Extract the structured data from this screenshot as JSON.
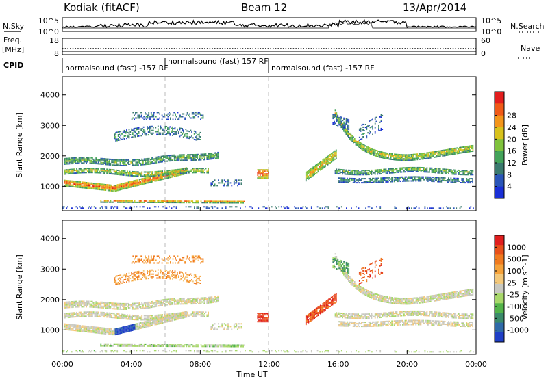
{
  "header": {
    "station": "Kodiak (fitACF)",
    "beam": "Beam 12",
    "date": "13/Apr/2014"
  },
  "panels": {
    "nsky_label": "N.Sky",
    "nsky_ticks": [
      "10^5",
      "10^0"
    ],
    "nsearch_label": "N.Search",
    "freq_label_1": "Freq.",
    "freq_label_2": "[MHz]",
    "freq_ticks": [
      "18",
      "8"
    ],
    "nave_label": "Nave",
    "nave_ticks": [
      "60",
      "0"
    ],
    "cpid_label": "CPID",
    "cpid_segments": [
      {
        "text": "normalsound (fast) -157 RF"
      },
      {
        "text": "normalsound (fast) 157 RF"
      },
      {
        "text": "normalsound (fast) -157 RF"
      }
    ]
  },
  "chart_data": [
    {
      "type": "heatmap",
      "name": "power",
      "ylabel": "Slant Range [km]",
      "yticks": [
        1000,
        2000,
        3000,
        4000
      ],
      "ylim": [
        200,
        4600
      ],
      "xlim": [
        0,
        24
      ],
      "colorbar": {
        "label": "Power [dB]",
        "ticks": [
          "4",
          "8",
          "12",
          "16",
          "20",
          "24",
          "28"
        ],
        "colors": [
          "#1a2fd6",
          "#2a55b8",
          "#3a7a6e",
          "#43a35a",
          "#7fc23c",
          "#d8c21c",
          "#f3951a",
          "#f05a17",
          "#e31e1e"
        ]
      }
    },
    {
      "type": "heatmap",
      "name": "velocity",
      "ylabel": "Slant Range [km]",
      "yticks": [
        1000,
        2000,
        3000,
        4000
      ],
      "ylim": [
        200,
        4600
      ],
      "xlim": [
        0,
        24
      ],
      "xlabel": "Time UT",
      "xticks": [
        "00:00",
        "04:00",
        "08:00",
        "12:00",
        "16:00",
        "20:00",
        "00:00"
      ],
      "colorbar": {
        "label": "Velocity [m s^-1]",
        "ticks": [
          "1000",
          "500",
          "100",
          "25",
          "-25",
          "-100",
          "-500",
          "-1000"
        ],
        "colors": [
          "#1f3fc6",
          "#2f6aa8",
          "#3a8a6a",
          "#53b34a",
          "#a8d86a",
          "#c8c8c0",
          "#f3c87a",
          "#f5a23a",
          "#f07a1f",
          "#e8501a",
          "#e01e1e"
        ]
      }
    }
  ]
}
